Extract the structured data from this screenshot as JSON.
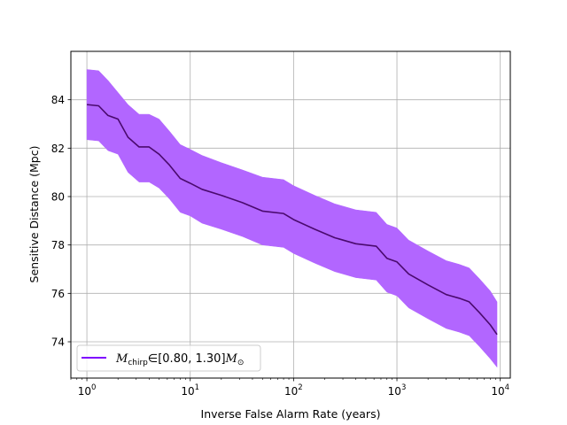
{
  "chart_data": {
    "type": "line",
    "xscale": "log",
    "xlim": [
      0.7,
      12500
    ],
    "ylim": [
      72.5,
      86.0
    ],
    "grid": true,
    "xlabel": "Inverse False Alarm Rate (years)",
    "ylabel": "Sensitive Distance (Mpc)",
    "x_ticks": [
      1,
      10,
      100,
      1000,
      10000
    ],
    "x_tick_labels": [
      {
        "base": "10",
        "exp": "0"
      },
      {
        "base": "10",
        "exp": "1"
      },
      {
        "base": "10",
        "exp": "2"
      },
      {
        "base": "10",
        "exp": "3"
      },
      {
        "base": "10",
        "exp": "4"
      }
    ],
    "y_ticks": [
      74,
      76,
      78,
      80,
      82,
      84
    ],
    "y_tick_labels": [
      "74",
      "76",
      "78",
      "80",
      "82",
      "84"
    ],
    "legend": {
      "position": "lower-left",
      "label": {
        "sym": "M",
        "sub": "chirp",
        "mid": "∈[0.80, 1.30]",
        "sym2": "M",
        "sub2": "⊙"
      }
    },
    "series": [
      {
        "line_color": "#4a0a6e",
        "band_color": "#b266ff",
        "legend_line_color": "#7f00ff",
        "points": [
          {
            "x": 1.0,
            "y": 83.8,
            "lo": 82.35,
            "hi": 85.25
          },
          {
            "x": 1.3,
            "y": 83.75,
            "lo": 82.3,
            "hi": 85.2
          },
          {
            "x": 1.6,
            "y": 83.35,
            "lo": 81.9,
            "hi": 84.8
          },
          {
            "x": 2.0,
            "y": 83.2,
            "lo": 81.75,
            "hi": 84.3
          },
          {
            "x": 2.5,
            "y": 82.45,
            "lo": 81.0,
            "hi": 83.8
          },
          {
            "x": 3.2,
            "y": 82.05,
            "lo": 80.6,
            "hi": 83.4
          },
          {
            "x": 4.0,
            "y": 82.05,
            "lo": 80.6,
            "hi": 83.4
          },
          {
            "x": 5.0,
            "y": 81.75,
            "lo": 80.35,
            "hi": 83.2
          },
          {
            "x": 6.3,
            "y": 81.3,
            "lo": 79.9,
            "hi": 82.7
          },
          {
            "x": 8.0,
            "y": 80.75,
            "lo": 79.35,
            "hi": 82.15
          },
          {
            "x": 10.0,
            "y": 80.55,
            "lo": 79.2,
            "hi": 81.95
          },
          {
            "x": 13.0,
            "y": 80.3,
            "lo": 78.9,
            "hi": 81.7
          },
          {
            "x": 20.0,
            "y": 80.05,
            "lo": 78.65,
            "hi": 81.4
          },
          {
            "x": 32.0,
            "y": 79.75,
            "lo": 78.35,
            "hi": 81.1
          },
          {
            "x": 50.0,
            "y": 79.4,
            "lo": 78.0,
            "hi": 80.8
          },
          {
            "x": 80.0,
            "y": 79.3,
            "lo": 77.9,
            "hi": 80.7
          },
          {
            "x": 100.0,
            "y": 79.05,
            "lo": 77.65,
            "hi": 80.45
          },
          {
            "x": 160.0,
            "y": 78.65,
            "lo": 77.25,
            "hi": 80.05
          },
          {
            "x": 250.0,
            "y": 78.3,
            "lo": 76.9,
            "hi": 79.7
          },
          {
            "x": 400.0,
            "y": 78.05,
            "lo": 76.65,
            "hi": 79.45
          },
          {
            "x": 630.0,
            "y": 77.95,
            "lo": 76.55,
            "hi": 79.35
          },
          {
            "x": 800.0,
            "y": 77.45,
            "lo": 76.05,
            "hi": 78.85
          },
          {
            "x": 1000.0,
            "y": 77.3,
            "lo": 75.9,
            "hi": 78.7
          },
          {
            "x": 1300.0,
            "y": 76.8,
            "lo": 75.4,
            "hi": 78.2
          },
          {
            "x": 2000.0,
            "y": 76.35,
            "lo": 74.95,
            "hi": 77.75
          },
          {
            "x": 3000.0,
            "y": 75.95,
            "lo": 74.55,
            "hi": 77.35
          },
          {
            "x": 4000.0,
            "y": 75.8,
            "lo": 74.4,
            "hi": 77.2
          },
          {
            "x": 5000.0,
            "y": 75.65,
            "lo": 74.25,
            "hi": 77.05
          },
          {
            "x": 6300.0,
            "y": 75.2,
            "lo": 73.8,
            "hi": 76.6
          },
          {
            "x": 8000.0,
            "y": 74.7,
            "lo": 73.3,
            "hi": 76.1
          },
          {
            "x": 9300.0,
            "y": 74.3,
            "lo": 72.95,
            "hi": 75.65
          }
        ]
      }
    ]
  }
}
